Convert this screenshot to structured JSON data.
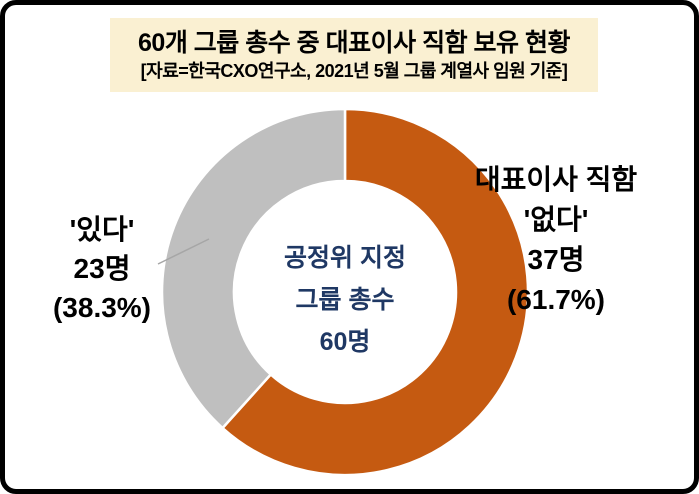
{
  "header": {
    "title": "60개 그룹 총수 중 대표이사 직함 보유 현황",
    "subtitle": "[자료=한국CXO연구소, 2021년 5월 그룹 계열사 임원 기준]"
  },
  "chart_data": {
    "type": "pie",
    "variant": "donut",
    "title": "60개 그룹 총수 중 대표이사 직함 보유 현황",
    "source_note": "[자료=한국CXO연구소, 2021년 5월 그룹 계열사 임원 기준]",
    "total": 60,
    "start_angle_deg": 0,
    "direction": "clockwise",
    "hole_ratio": 0.61,
    "slices": [
      {
        "label": "대표이사 직함 '없다'",
        "value": 37,
        "percent": 61.7,
        "color": "#C55A11"
      },
      {
        "label": "대표이사 직함 '있다'",
        "value": 23,
        "percent": 38.3,
        "color": "#BFBFBF"
      }
    ],
    "center_text": [
      "공정위 지정",
      "그룹 총수",
      "60명"
    ],
    "legend": "none",
    "grid": false
  },
  "annotations": {
    "left": [
      "'있다'",
      "23명",
      "(38.3%)"
    ],
    "right": [
      "대표이사 직함",
      "'없다'",
      "37명",
      "(61.7%)"
    ],
    "center": [
      "공정위 지정",
      "그룹 총수",
      "60명"
    ]
  },
  "style": {
    "slice_orange": "#C55A11",
    "slice_gray": "#BFBFBF",
    "center_text_color": "#1F3864",
    "title_bg": "#FAF0D2",
    "frame_border": "#000000",
    "leader_line": "#A6A6A6"
  }
}
